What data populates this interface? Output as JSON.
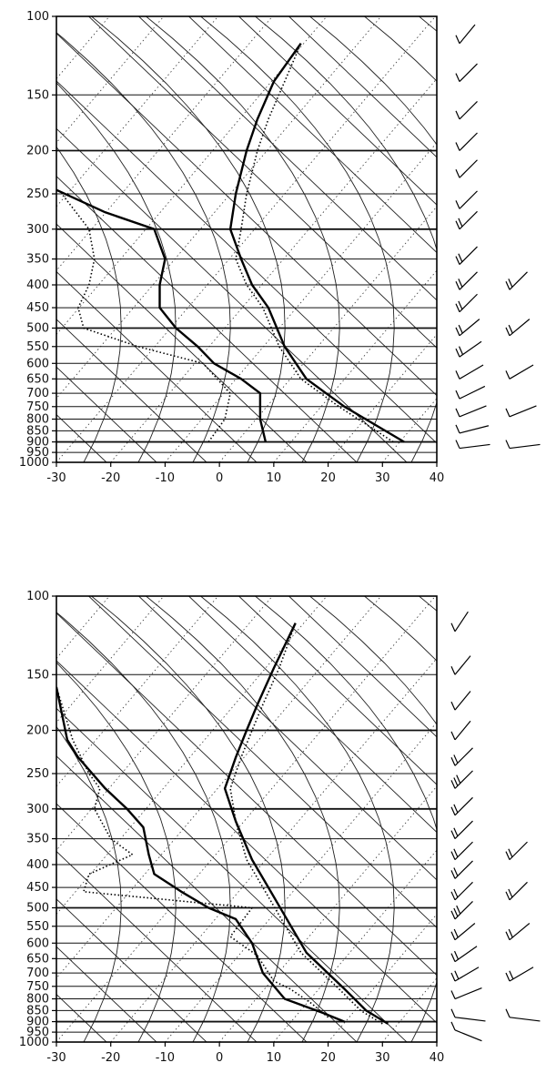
{
  "chart_data": [
    {
      "type": "line",
      "title": "",
      "xlabel": "",
      "ylabel": "",
      "xlim": [
        -30,
        40
      ],
      "ylim": [
        1000,
        100
      ],
      "y_scale": "log",
      "grid": true,
      "x_ticks": [
        "-30",
        "-20",
        "-10",
        "0",
        "10",
        "20",
        "30",
        "40"
      ],
      "y_ticks": [
        "100",
        "150",
        "200",
        "250",
        "300",
        "350",
        "400",
        "450",
        "500",
        "550",
        "600",
        "650",
        "700",
        "750",
        "800",
        "850",
        "900",
        "950",
        "1000"
      ],
      "series": [
        {
          "style": "solid",
          "points": [
            [
              8.5,
              900
            ],
            [
              7.5,
              800
            ],
            [
              7.5,
              700
            ],
            [
              4,
              650
            ],
            [
              -1,
              600
            ],
            [
              -4,
              550
            ],
            [
              -8,
              500
            ],
            [
              -11,
              450
            ],
            [
              -11,
              400
            ],
            [
              -10,
              350
            ],
            [
              -12,
              300
            ],
            [
              -21,
              275
            ],
            [
              -30,
              245
            ]
          ]
        },
        {
          "style": "dotted",
          "points": [
            [
              -2,
              900
            ],
            [
              1,
              800
            ],
            [
              2,
              700
            ],
            [
              -3,
              600
            ],
            [
              -15,
              550
            ],
            [
              -25,
              500
            ],
            [
              -26,
              450
            ],
            [
              -24,
              400
            ],
            [
              -23,
              350
            ],
            [
              -24,
              300
            ],
            [
              -29,
              250
            ]
          ]
        },
        {
          "style": "solid",
          "points": [
            [
              34,
              900
            ],
            [
              23,
              750
            ],
            [
              16,
              650
            ],
            [
              12,
              550
            ],
            [
              9,
              450
            ],
            [
              6,
              400
            ],
            [
              4,
              350
            ],
            [
              2,
              300
            ],
            [
              3,
              250
            ],
            [
              5,
              200
            ],
            [
              7,
              170
            ],
            [
              10,
              140
            ],
            [
              15,
              115
            ]
          ]
        },
        {
          "style": "dotted",
          "points": [
            [
              32,
              900
            ],
            [
              22,
              750
            ],
            [
              15,
              650
            ],
            [
              11,
              550
            ],
            [
              8,
              450
            ],
            [
              5,
              400
            ],
            [
              3,
              350
            ],
            [
              4,
              300
            ],
            [
              5,
              250
            ],
            [
              7,
              200
            ],
            [
              9,
              170
            ],
            [
              12,
              140
            ],
            [
              15,
              115
            ]
          ]
        }
      ],
      "wind_barbs": [
        {
          "pressure": 115,
          "angle": 30,
          "barbs": 1
        },
        {
          "pressure": 140,
          "angle": 35,
          "barbs": 1
        },
        {
          "pressure": 170,
          "angle": 35,
          "barbs": 1
        },
        {
          "pressure": 200,
          "angle": 35,
          "barbs": 1
        },
        {
          "pressure": 230,
          "angle": 35,
          "barbs": 1
        },
        {
          "pressure": 270,
          "angle": 35,
          "barbs": 1
        },
        {
          "pressure": 300,
          "angle": 35,
          "barbs": 2
        },
        {
          "pressure": 360,
          "angle": 35,
          "barbs": 2
        },
        {
          "pressure": 410,
          "angle": 35,
          "barbs": 2
        },
        {
          "pressure": 460,
          "angle": 35,
          "barbs": 2
        },
        {
          "pressure": 520,
          "angle": 40,
          "barbs": 2
        },
        {
          "pressure": 580,
          "angle": 45,
          "barbs": 2
        },
        {
          "pressure": 650,
          "angle": 50,
          "barbs": 1
        },
        {
          "pressure": 720,
          "angle": 55,
          "barbs": 1
        },
        {
          "pressure": 790,
          "angle": 60,
          "barbs": 1
        },
        {
          "pressure": 860,
          "angle": 70,
          "barbs": 1
        },
        {
          "pressure": 930,
          "angle": 80,
          "barbs": 1
        }
      ]
    },
    {
      "type": "line",
      "title": "",
      "xlabel": "",
      "ylabel": "",
      "xlim": [
        -30,
        40
      ],
      "ylim": [
        1000,
        100
      ],
      "y_scale": "log",
      "grid": true,
      "x_ticks": [
        "-30",
        "-20",
        "-10",
        "0",
        "10",
        "20",
        "30",
        "40"
      ],
      "y_ticks": [
        "100",
        "150",
        "200",
        "250",
        "300",
        "350",
        "400",
        "450",
        "500",
        "550",
        "600",
        "650",
        "700",
        "750",
        "800",
        "850",
        "900",
        "950",
        "1000"
      ],
      "series": [
        {
          "style": "solid",
          "points": [
            [
              23,
              900
            ],
            [
              19,
              860
            ],
            [
              12,
              800
            ],
            [
              8,
              700
            ],
            [
              6,
              600
            ],
            [
              3,
              530
            ],
            [
              -2,
              500
            ],
            [
              -7,
              460
            ],
            [
              -12,
              420
            ],
            [
              -13,
              380
            ],
            [
              -14,
              330
            ],
            [
              -17,
              300
            ],
            [
              -21,
              270
            ],
            [
              -26,
              230
            ],
            [
              -28,
              210
            ],
            [
              -30,
              160
            ]
          ]
        },
        {
          "style": "dotted",
          "points": [
            [
              20,
              880
            ],
            [
              17,
              820
            ],
            [
              13,
              760
            ],
            [
              10,
              730
            ],
            [
              7,
              640
            ],
            [
              2,
              580
            ],
            [
              6,
              500
            ],
            [
              -25,
              460
            ],
            [
              -24,
              420
            ],
            [
              -16,
              380
            ],
            [
              -20,
              350
            ],
            [
              -23,
              300
            ],
            [
              -22,
              270
            ],
            [
              -24,
              250
            ],
            [
              -27,
              210
            ],
            [
              -30,
              160
            ]
          ]
        },
        {
          "style": "solid",
          "points": [
            [
              31,
              910
            ],
            [
              27,
              850
            ],
            [
              23,
              760
            ],
            [
              16,
              630
            ],
            [
              12,
              520
            ],
            [
              9,
              450
            ],
            [
              6,
              390
            ],
            [
              3,
              320
            ],
            [
              1,
              270
            ],
            [
              3,
              230
            ],
            [
              5,
              200
            ],
            [
              7,
              175
            ],
            [
              10,
              145
            ],
            [
              14,
              115
            ]
          ]
        },
        {
          "style": "dotted",
          "points": [
            [
              30,
              910
            ],
            [
              26,
              850
            ],
            [
              22,
              760
            ],
            [
              15,
              630
            ],
            [
              11,
              520
            ],
            [
              8,
              450
            ],
            [
              5,
              390
            ],
            [
              3,
              320
            ],
            [
              2,
              270
            ],
            [
              4,
              230
            ],
            [
              6,
              200
            ],
            [
              8,
              175
            ],
            [
              11,
              145
            ],
            [
              14,
              115
            ]
          ]
        }
      ],
      "wind_barbs": [
        {
          "pressure": 120,
          "angle": 25,
          "barbs": 1
        },
        {
          "pressure": 150,
          "angle": 30,
          "barbs": 1
        },
        {
          "pressure": 180,
          "angle": 30,
          "barbs": 1
        },
        {
          "pressure": 210,
          "angle": 30,
          "barbs": 1
        },
        {
          "pressure": 240,
          "angle": 35,
          "barbs": 2
        },
        {
          "pressure": 270,
          "angle": 35,
          "barbs": 3
        },
        {
          "pressure": 310,
          "angle": 35,
          "barbs": 2
        },
        {
          "pressure": 350,
          "angle": 35,
          "barbs": 2
        },
        {
          "pressure": 390,
          "angle": 35,
          "barbs": 2
        },
        {
          "pressure": 430,
          "angle": 35,
          "barbs": 2
        },
        {
          "pressure": 480,
          "angle": 35,
          "barbs": 2
        },
        {
          "pressure": 530,
          "angle": 35,
          "barbs": 3
        },
        {
          "pressure": 590,
          "angle": 40,
          "barbs": 2
        },
        {
          "pressure": 660,
          "angle": 45,
          "barbs": 2
        },
        {
          "pressure": 730,
          "angle": 50,
          "barbs": 2
        },
        {
          "pressure": 800,
          "angle": 60,
          "barbs": 1
        },
        {
          "pressure": 880,
          "angle": 100,
          "barbs": 1
        },
        {
          "pressure": 940,
          "angle": 120,
          "barbs": 1
        }
      ]
    }
  ]
}
